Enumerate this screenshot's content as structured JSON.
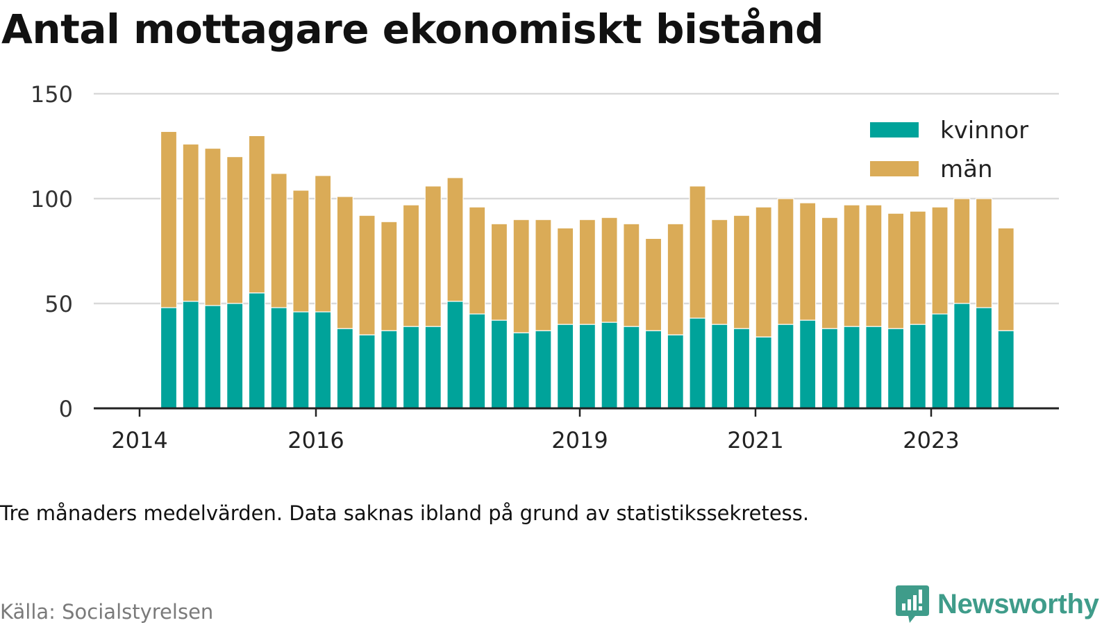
{
  "title": "Antal mottagare ekonomiskt bistånd",
  "note": "Tre månaders medelvärden. Data saknas ibland på grund av statistikssekretess.",
  "source": "Källa: Socialstyrelsen",
  "brand": {
    "name": "Newsworthy",
    "logo_icon": "newsworthy-chart-bubble-icon"
  },
  "colors": {
    "kvinnor": "#00a39a",
    "man": "#daab57",
    "grid": "#d9d9d9",
    "axis": "#222222",
    "brand": "#3f9c8a"
  },
  "chart_data": {
    "type": "bar",
    "stacked": true,
    "grid": true,
    "legend_position": "top-right",
    "ylim": [
      0,
      150
    ],
    "y_ticks": [
      "0",
      "50",
      "100",
      "150"
    ],
    "x_ticks": [
      "2014",
      "2016",
      "2019",
      "2021",
      "2023"
    ],
    "series": [
      {
        "name": "kvinnor",
        "values": [
          48,
          51,
          49,
          50,
          55,
          48,
          46,
          46,
          38,
          35,
          37,
          39,
          39,
          51,
          45,
          42,
          36,
          37,
          40,
          40,
          41,
          39,
          37,
          35,
          43,
          40,
          38,
          34,
          40,
          42,
          38,
          39,
          39,
          38,
          40,
          45,
          50,
          48,
          37
        ]
      },
      {
        "name": "män",
        "values": [
          84,
          75,
          75,
          70,
          75,
          64,
          58,
          65,
          63,
          57,
          52,
          58,
          67,
          59,
          51,
          46,
          54,
          53,
          46,
          50,
          50,
          49,
          44,
          53,
          63,
          50,
          54,
          62,
          60,
          56,
          53,
          58,
          58,
          55,
          54,
          51,
          50,
          52,
          49
        ]
      }
    ]
  }
}
